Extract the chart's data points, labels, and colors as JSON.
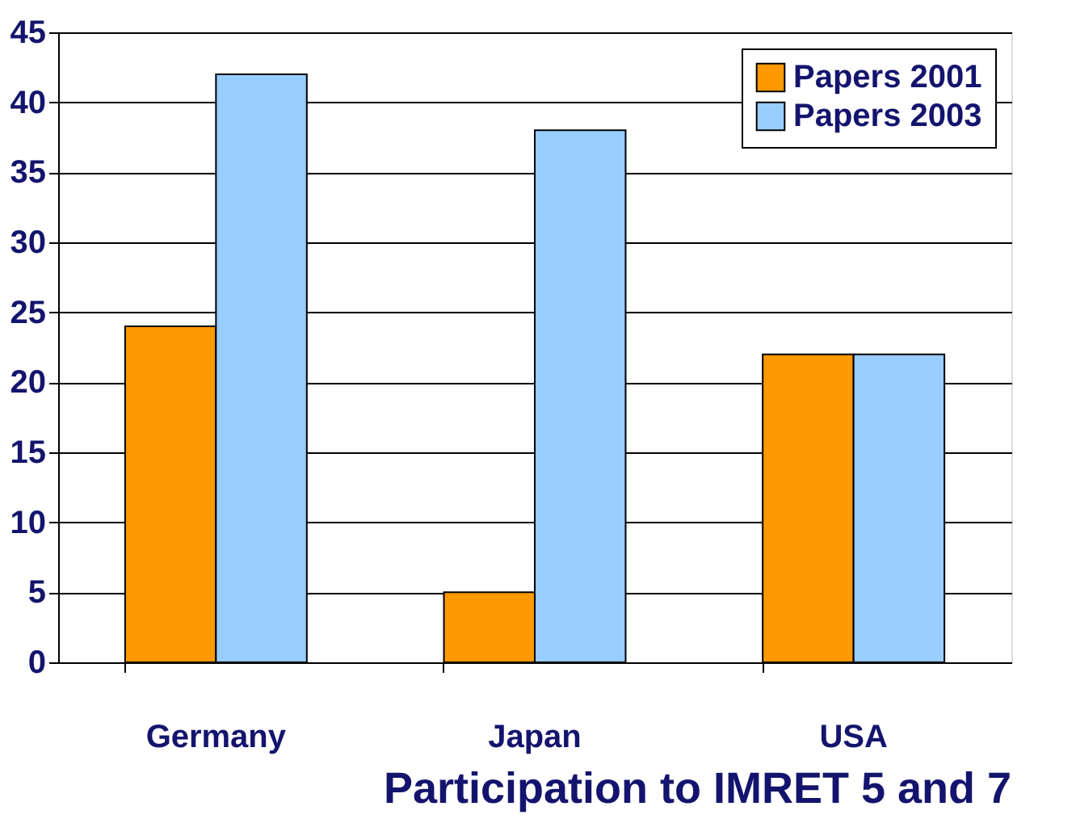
{
  "chart_data": {
    "type": "bar",
    "title": "Participation to IMRET 5 and 7",
    "categories": [
      "Germany",
      "Japan",
      "USA"
    ],
    "series": [
      {
        "name": "Papers 2001",
        "color": "#ff9900",
        "values": [
          24,
          5,
          22
        ]
      },
      {
        "name": "Papers 2003",
        "color": "#99ccff",
        "values": [
          42,
          38,
          22
        ]
      }
    ],
    "ylim": [
      0,
      45
    ],
    "yticks": [
      0,
      5,
      10,
      15,
      20,
      25,
      30,
      35,
      40,
      45
    ],
    "grid": "y",
    "legend": "top right"
  }
}
